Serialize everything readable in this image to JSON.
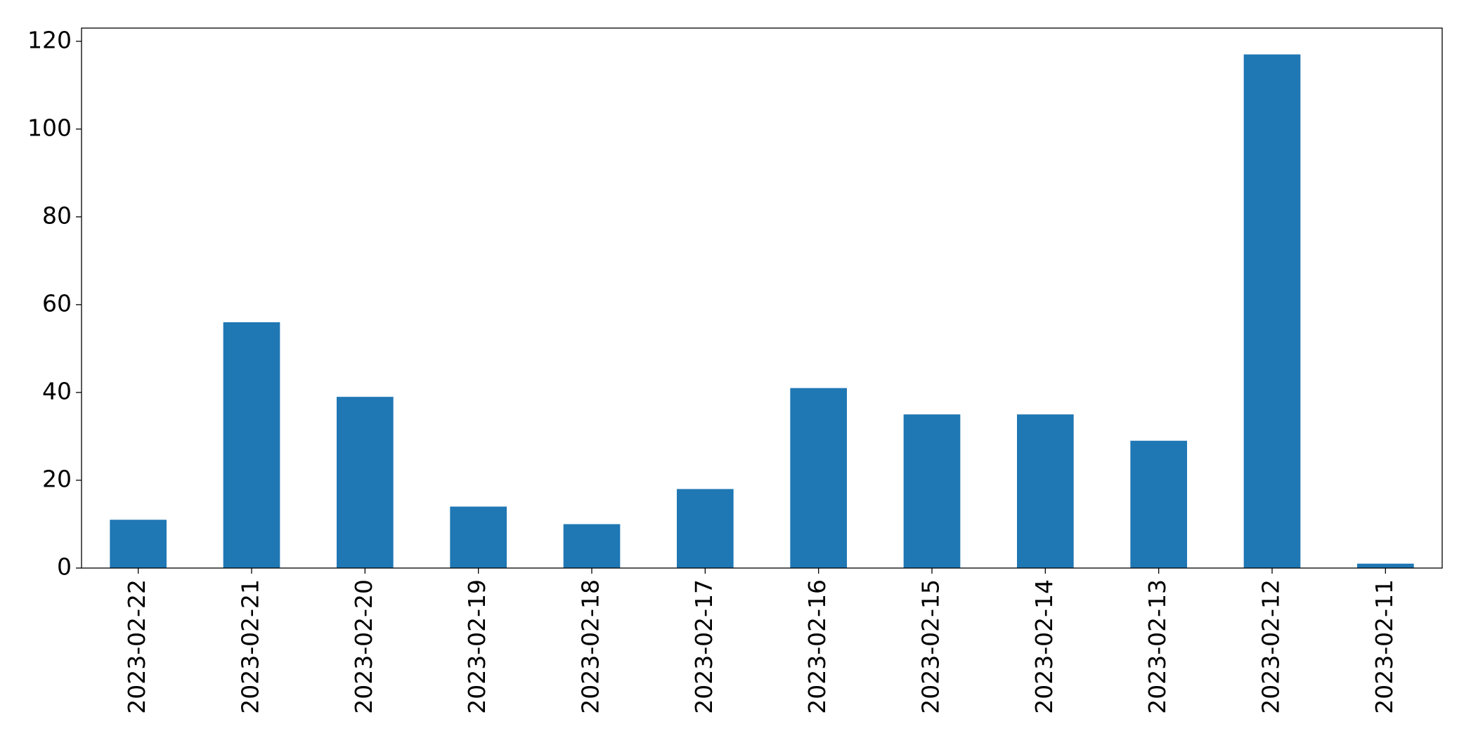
{
  "chart_data": {
    "type": "bar",
    "categories": [
      "2023-02-22",
      "2023-02-21",
      "2023-02-20",
      "2023-02-19",
      "2023-02-18",
      "2023-02-17",
      "2023-02-16",
      "2023-02-15",
      "2023-02-14",
      "2023-02-13",
      "2023-02-12",
      "2023-02-11"
    ],
    "values": [
      11,
      56,
      39,
      14,
      10,
      18,
      41,
      35,
      35,
      29,
      117,
      1
    ],
    "color": "#1f77b4",
    "ylim": [
      0,
      123
    ],
    "yticks": [
      0,
      20,
      40,
      60,
      80,
      100,
      120
    ],
    "grid": false
  }
}
